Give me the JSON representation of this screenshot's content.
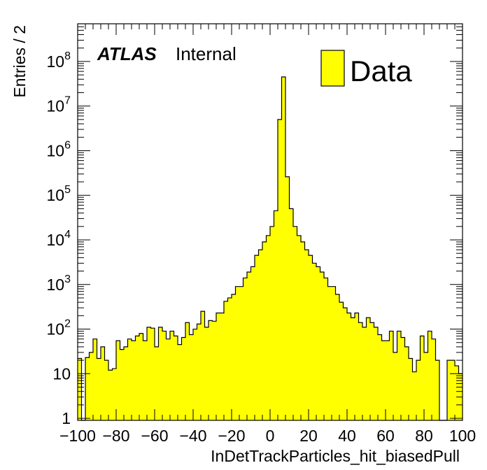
{
  "chart_data": {
    "type": "bar",
    "style": "histogram",
    "xlabel": "InDetTrackParticles_hit_biasedPull",
    "ylabel": "Entries / 2",
    "xlim": [
      -100,
      100
    ],
    "ylim": [
      0.9,
      700000000
    ],
    "log_y": true,
    "grid": false,
    "legend_position": "top-right",
    "fill_color": "#ffff00",
    "line_color": "#000000",
    "x_tick_labels": [
      "−100",
      "−80",
      "−60",
      "−40",
      "−20",
      "0",
      "20",
      "40",
      "60",
      "80",
      "100"
    ],
    "y_tick_labels": [
      {
        "base": "1",
        "exp": ""
      },
      {
        "base": "10",
        "exp": ""
      },
      {
        "base": "10",
        "exp": "2"
      },
      {
        "base": "10",
        "exp": "3"
      },
      {
        "base": "10",
        "exp": "4"
      },
      {
        "base": "10",
        "exp": "5"
      },
      {
        "base": "10",
        "exp": "6"
      },
      {
        "base": "10",
        "exp": "7"
      },
      {
        "base": "10",
        "exp": "8"
      }
    ],
    "bin_width": 2,
    "bins_start": -100,
    "values": [
      22,
      0,
      23,
      30,
      60,
      22,
      40,
      20,
      12,
      13,
      55,
      35,
      40,
      60,
      55,
      70,
      80,
      55,
      110,
      105,
      40,
      110,
      90,
      60,
      90,
      70,
      45,
      65,
      140,
      75,
      100,
      130,
      250,
      110,
      155,
      150,
      230,
      230,
      420,
      500,
      600,
      900,
      900,
      1400,
      1900,
      2500,
      4500,
      6000,
      9000,
      12500,
      20000,
      45000,
      5000000,
      45000000,
      260000,
      50000,
      20000,
      12500,
      9000,
      6000,
      4500,
      3000,
      2500,
      1900,
      1400,
      900,
      900,
      600,
      400,
      300,
      230,
      180,
      230,
      140,
      110,
      180,
      140,
      110,
      75,
      55,
      55,
      90,
      30,
      90,
      65,
      40,
      22,
      11,
      20,
      70,
      30,
      90,
      60,
      20,
      0,
      0,
      20,
      20,
      15,
      10
    ],
    "legend": {
      "entry": "Data"
    }
  },
  "labels": {
    "experiment": "ATLAS",
    "status": "Internal"
  }
}
